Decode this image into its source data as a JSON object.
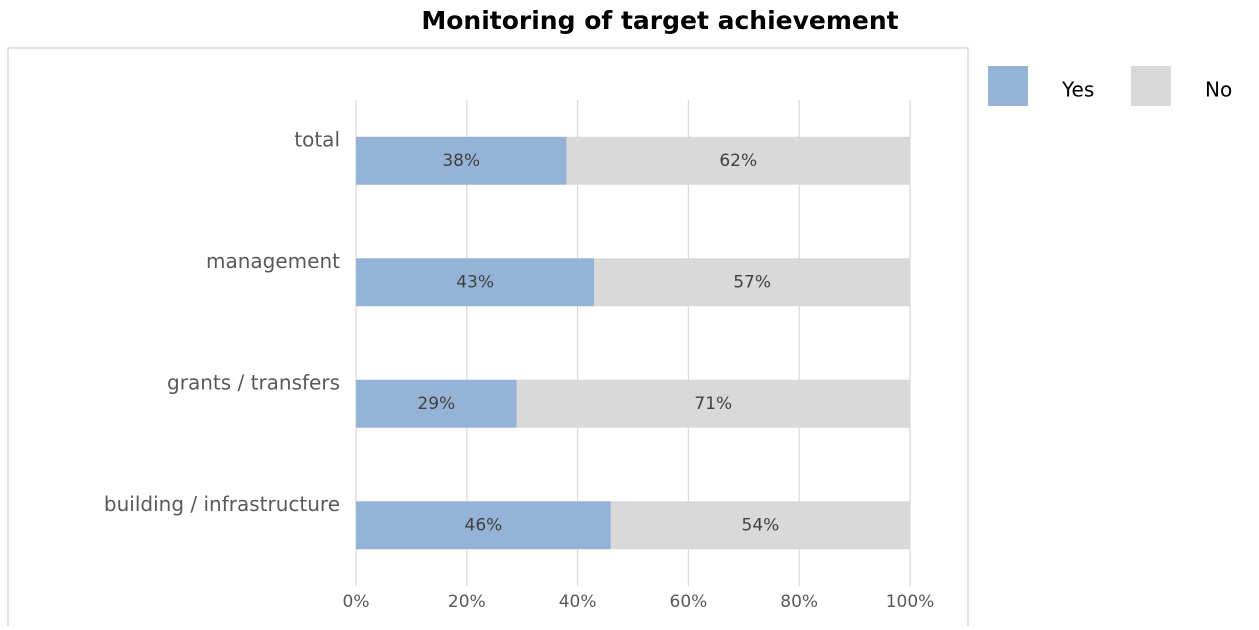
{
  "chart_data": {
    "type": "stacked_barh",
    "title": "Monitoring of target achievement",
    "categories": [
      "total",
      "management",
      "grants / transfers",
      "building / infrastructure"
    ],
    "series": [
      {
        "name": "Yes",
        "color": "#95b3d7",
        "values": [
          38,
          43,
          29,
          46
        ],
        "value_labels": [
          "38%",
          "43%",
          "29%",
          "46%"
        ]
      },
      {
        "name": "No",
        "color": "#d9d9d9",
        "values": [
          62,
          57,
          71,
          54
        ],
        "value_labels": [
          "62%",
          "57%",
          "71%",
          "54%"
        ]
      }
    ],
    "xlim": [
      0,
      100
    ],
    "xticks": [
      {
        "value": 0,
        "label": "0%"
      },
      {
        "value": 20,
        "label": "20%"
      },
      {
        "value": 40,
        "label": "40%"
      },
      {
        "value": 60,
        "label": "60%"
      },
      {
        "value": 80,
        "label": "80%"
      },
      {
        "value": 100,
        "label": "100%"
      }
    ],
    "grid": true,
    "legend": "top-right"
  }
}
